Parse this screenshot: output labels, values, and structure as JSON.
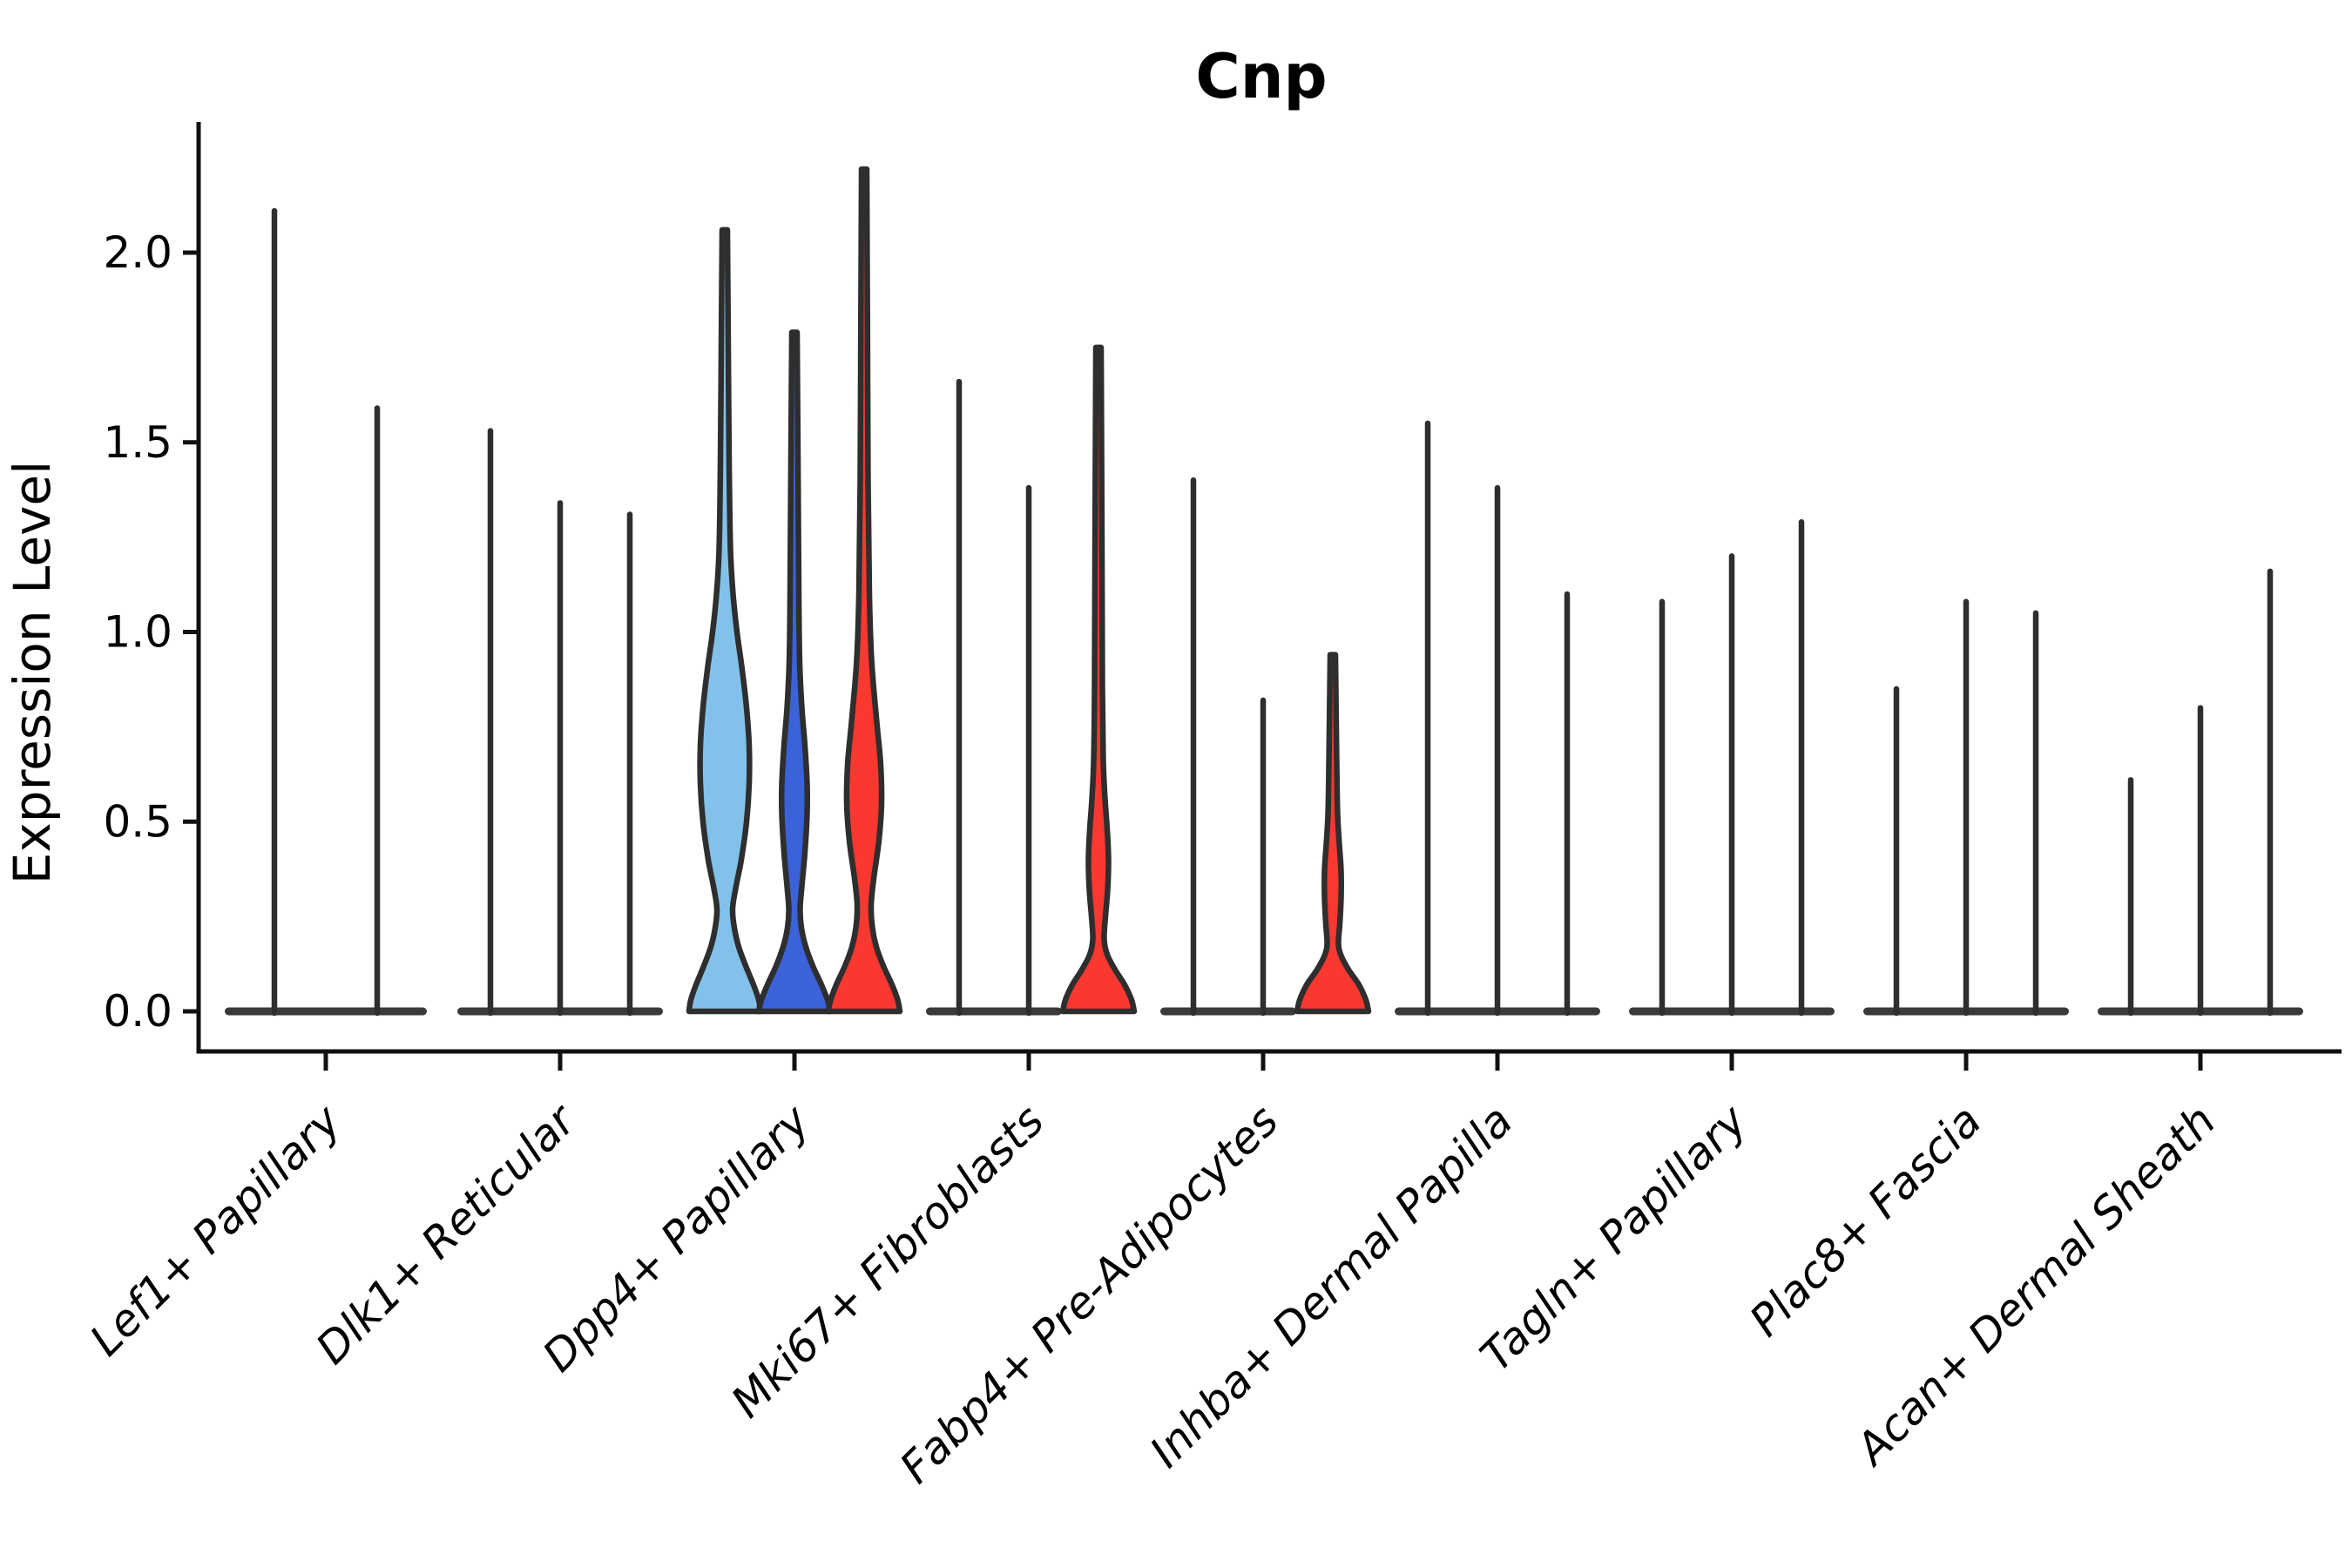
{
  "chart_data": {
    "type": "violin",
    "title": "Cnp",
    "ylabel": "Expression Level",
    "xlabel": "",
    "yticks": [
      0.0,
      0.5,
      1.0,
      1.5,
      2.0
    ],
    "ytick_labels": [
      "0.0",
      "0.5",
      "1.0",
      "1.5",
      "2.0"
    ],
    "ylim": [
      -0.11,
      2.34
    ],
    "grid": false,
    "legend": null,
    "categories": [
      "Lef1+ Papillary",
      "Dlk1+ Reticular",
      "Dpp4+ Papillary",
      "Mki67+ Fibroblasts",
      "Fabp4+ Pre-Adipocytes",
      "Inhba+ Dermal Papilla",
      "Tagln+ Papillary",
      "Plac8+ Fascia",
      "Acan+ Dermal Sheath"
    ],
    "groups": [
      {
        "category": "Lef1+ Papillary",
        "violins": [
          {
            "max": 2.11,
            "style": "spike",
            "fill": null
          },
          {
            "max": 1.59,
            "style": "spike",
            "fill": null
          }
        ]
      },
      {
        "category": "Dlk1+ Reticular",
        "violins": [
          {
            "max": 1.53,
            "style": "spike",
            "fill": null
          },
          {
            "max": 1.34,
            "style": "spike",
            "fill": null
          },
          {
            "max": 1.31,
            "style": "spike",
            "fill": null
          }
        ]
      },
      {
        "category": "Dpp4+ Papillary",
        "violins": [
          {
            "max": 2.06,
            "style": "violin",
            "fill": "#82C2EA",
            "profile": [
              [
                0,
                41
              ],
              [
                0.03,
                39
              ],
              [
                0.07,
                33
              ],
              [
                0.12,
                24
              ],
              [
                0.17,
                16
              ],
              [
                0.22,
                11
              ],
              [
                0.27,
                9
              ],
              [
                0.33,
                13
              ],
              [
                0.4,
                19
              ],
              [
                0.5,
                25
              ],
              [
                0.6,
                28
              ],
              [
                0.7,
                28
              ],
              [
                0.8,
                25
              ],
              [
                0.9,
                20
              ],
              [
                1.0,
                14
              ],
              [
                1.1,
                9.5
              ],
              [
                1.22,
                6.5
              ],
              [
                1.45,
                5
              ],
              [
                1.75,
                4
              ],
              [
                2.06,
                3
              ]
            ]
          },
          {
            "max": 1.79,
            "style": "violin",
            "fill": "#3B62D8",
            "profile": [
              [
                0,
                41
              ],
              [
                0.03,
                38
              ],
              [
                0.07,
                31
              ],
              [
                0.12,
                21
              ],
              [
                0.17,
                13
              ],
              [
                0.22,
                8
              ],
              [
                0.27,
                6.5
              ],
              [
                0.33,
                8.5
              ],
              [
                0.42,
                12
              ],
              [
                0.52,
                14.5
              ],
              [
                0.6,
                14.5
              ],
              [
                0.7,
                12
              ],
              [
                0.8,
                8.5
              ],
              [
                0.92,
                6
              ],
              [
                1.1,
                5
              ],
              [
                1.4,
                4.2
              ],
              [
                1.79,
                3
              ]
            ]
          },
          {
            "max": 2.22,
            "style": "violin",
            "fill": "#F93830",
            "profile": [
              [
                0,
                41
              ],
              [
                0.03,
                38.5
              ],
              [
                0.07,
                32
              ],
              [
                0.12,
                22
              ],
              [
                0.17,
                14
              ],
              [
                0.22,
                9.5
              ],
              [
                0.28,
                8
              ],
              [
                0.35,
                11
              ],
              [
                0.45,
                17
              ],
              [
                0.55,
                20
              ],
              [
                0.65,
                19
              ],
              [
                0.75,
                15
              ],
              [
                0.85,
                11
              ],
              [
                0.95,
                8
              ],
              [
                1.1,
                6
              ],
              [
                1.4,
                4.5
              ],
              [
                1.8,
                3.8
              ],
              [
                2.22,
                3
              ]
            ]
          }
        ]
      },
      {
        "category": "Mki67+ Fibroblasts",
        "violins": [
          {
            "max": 1.66,
            "style": "spike",
            "fill": null
          },
          {
            "max": 1.38,
            "style": "spike",
            "fill": null
          },
          {
            "max": 1.75,
            "style": "violin",
            "fill": "#F93830",
            "profile": [
              [
                0,
                41
              ],
              [
                0.03,
                38
              ],
              [
                0.07,
                30
              ],
              [
                0.11,
                19
              ],
              [
                0.15,
                10
              ],
              [
                0.19,
                6.5
              ],
              [
                0.25,
                8
              ],
              [
                0.32,
                10.5
              ],
              [
                0.4,
                11.5
              ],
              [
                0.48,
                10
              ],
              [
                0.56,
                7.5
              ],
              [
                0.66,
                5.5
              ],
              [
                0.85,
                4.5
              ],
              [
                1.2,
                4
              ],
              [
                1.75,
                3
              ]
            ]
          }
        ]
      },
      {
        "category": "Fabp4+ Pre-Adipocytes",
        "violins": [
          {
            "max": 1.4,
            "style": "spike",
            "fill": null
          },
          {
            "max": 0.82,
            "style": "spike",
            "fill": null
          },
          {
            "max": 0.94,
            "style": "violin",
            "fill": "#F93830",
            "profile": [
              [
                0,
                41
              ],
              [
                0.03,
                38
              ],
              [
                0.07,
                30
              ],
              [
                0.11,
                18
              ],
              [
                0.15,
                9
              ],
              [
                0.18,
                6.5
              ],
              [
                0.23,
                8
              ],
              [
                0.3,
                9.5
              ],
              [
                0.37,
                9.5
              ],
              [
                0.44,
                7.5
              ],
              [
                0.52,
                5.5
              ],
              [
                0.65,
                4.5
              ],
              [
                0.94,
                3
              ]
            ]
          }
        ]
      },
      {
        "category": "Inhba+ Dermal Papilla",
        "violins": [
          {
            "max": 1.55,
            "style": "spike",
            "fill": null
          },
          {
            "max": 1.38,
            "style": "spike",
            "fill": null
          },
          {
            "max": 1.1,
            "style": "spike",
            "fill": null
          }
        ]
      },
      {
        "category": "Tagln+ Papillary",
        "violins": [
          {
            "max": 1.08,
            "style": "spike",
            "fill": null
          },
          {
            "max": 1.2,
            "style": "spike",
            "fill": null
          },
          {
            "max": 1.29,
            "style": "spike",
            "fill": null
          }
        ]
      },
      {
        "category": "Plac8+ Fascia",
        "violins": [
          {
            "max": 0.85,
            "style": "spike",
            "fill": null
          },
          {
            "max": 1.08,
            "style": "spike",
            "fill": null
          },
          {
            "max": 1.05,
            "style": "spike",
            "fill": null
          }
        ]
      },
      {
        "category": "Acan+ Dermal Sheath",
        "violins": [
          {
            "max": 0.61,
            "style": "spike",
            "fill": null
          },
          {
            "max": 0.8,
            "style": "spike",
            "fill": null
          },
          {
            "max": 1.16,
            "style": "spike",
            "fill": null
          }
        ]
      }
    ],
    "colors": {
      "highlight_light_blue": "#82C2EA",
      "highlight_dark_blue": "#3B62D8",
      "highlight_red": "#F93830",
      "violin_outline": "#2E2E2E",
      "baseline_band": "#3A3A3A",
      "axis": "#111111",
      "text": "#000000",
      "background": "#FFFFFF"
    }
  }
}
